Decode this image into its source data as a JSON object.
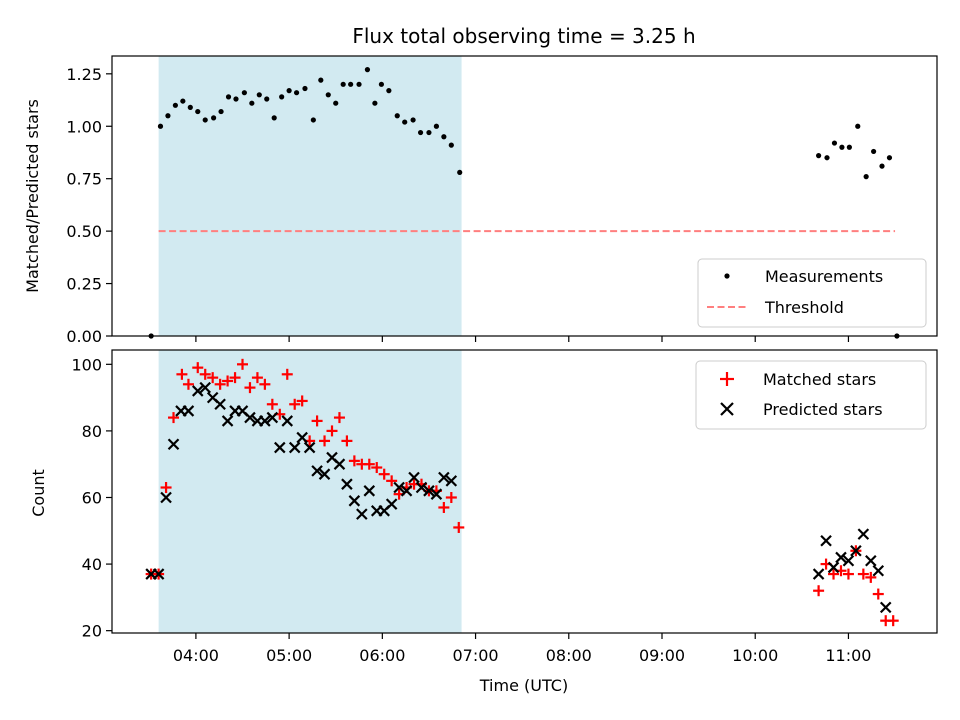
{
  "chart_data": {
    "type": "scatter",
    "title": "Flux total observing time = 3.25 h",
    "xlabel": "Time (UTC)",
    "x_unit": "hours UTC",
    "x_range": [
      3.1,
      11.95
    ],
    "x_ticks": [
      {
        "v": 4,
        "label": "04:00"
      },
      {
        "v": 5,
        "label": "05:00"
      },
      {
        "v": 6,
        "label": "06:00"
      },
      {
        "v": 7,
        "label": "07:00"
      },
      {
        "v": 8,
        "label": "08:00"
      },
      {
        "v": 9,
        "label": "09:00"
      },
      {
        "v": 10,
        "label": "10:00"
      },
      {
        "v": 11,
        "label": "11:00"
      }
    ],
    "shaded_span": {
      "x0": 3.6,
      "x1": 6.85,
      "color": "#add8e6"
    },
    "top": {
      "ylabel": "Matched/Predicted stars",
      "ylim": [
        0,
        1.335
      ],
      "y_ticks": [
        {
          "v": 0,
          "label": "0.00"
        },
        {
          "v": 0.25,
          "label": "0.25"
        },
        {
          "v": 0.5,
          "label": "0.50"
        },
        {
          "v": 0.75,
          "label": "0.75"
        },
        {
          "v": 1.0,
          "label": "1.00"
        },
        {
          "v": 1.25,
          "label": "1.25"
        }
      ],
      "legend": {
        "position": "lower right",
        "items": [
          "Measurements",
          "Threshold"
        ]
      },
      "threshold": {
        "name": "Threshold",
        "y": 0.5,
        "x0": 3.6,
        "x1": 11.5,
        "color": "#ff7f7f"
      },
      "measurements": {
        "name": "Measurements",
        "color": "#000000",
        "points": [
          [
            3.52,
            0.0
          ],
          [
            3.62,
            1.0
          ],
          [
            3.7,
            1.05
          ],
          [
            3.78,
            1.1
          ],
          [
            3.86,
            1.12
          ],
          [
            3.94,
            1.09
          ],
          [
            4.02,
            1.07
          ],
          [
            4.1,
            1.03
          ],
          [
            4.19,
            1.04
          ],
          [
            4.27,
            1.07
          ],
          [
            4.35,
            1.14
          ],
          [
            4.43,
            1.13
          ],
          [
            4.52,
            1.16
          ],
          [
            4.6,
            1.11
          ],
          [
            4.68,
            1.15
          ],
          [
            4.76,
            1.13
          ],
          [
            4.84,
            1.04
          ],
          [
            4.92,
            1.14
          ],
          [
            5.0,
            1.17
          ],
          [
            5.08,
            1.16
          ],
          [
            5.17,
            1.18
          ],
          [
            5.26,
            1.03
          ],
          [
            5.34,
            1.22
          ],
          [
            5.42,
            1.15
          ],
          [
            5.5,
            1.11
          ],
          [
            5.58,
            1.2
          ],
          [
            5.66,
            1.2
          ],
          [
            5.75,
            1.2
          ],
          [
            5.84,
            1.27
          ],
          [
            5.92,
            1.11
          ],
          [
            5.99,
            1.2
          ],
          [
            6.07,
            1.17
          ],
          [
            6.16,
            1.05
          ],
          [
            6.24,
            1.02
          ],
          [
            6.33,
            1.03
          ],
          [
            6.41,
            0.97
          ],
          [
            6.5,
            0.97
          ],
          [
            6.58,
            1.0
          ],
          [
            6.66,
            0.95
          ],
          [
            6.74,
            0.91
          ],
          [
            6.83,
            0.78
          ],
          [
            10.68,
            0.86
          ],
          [
            10.77,
            0.85
          ],
          [
            10.85,
            0.92
          ],
          [
            10.93,
            0.9
          ],
          [
            11.01,
            0.9
          ],
          [
            11.1,
            1.0
          ],
          [
            11.19,
            0.76
          ],
          [
            11.27,
            0.88
          ],
          [
            11.36,
            0.81
          ],
          [
            11.44,
            0.85
          ],
          [
            11.52,
            0.0
          ]
        ]
      }
    },
    "bottom": {
      "ylabel": "Count",
      "ylim": [
        19.3,
        104.3
      ],
      "y_ticks": [
        {
          "v": 20,
          "label": "20"
        },
        {
          "v": 40,
          "label": "40"
        },
        {
          "v": 60,
          "label": "60"
        },
        {
          "v": 80,
          "label": "80"
        },
        {
          "v": 100,
          "label": "100"
        }
      ],
      "legend": {
        "position": "upper right",
        "items": [
          "Matched stars",
          "Predicted stars"
        ]
      },
      "series": [
        {
          "name": "Matched stars",
          "marker": "plus",
          "color": "#ff0000",
          "points": [
            [
              3.52,
              37
            ],
            [
              3.6,
              37
            ],
            [
              3.68,
              63
            ],
            [
              3.76,
              84
            ],
            [
              3.85,
              97
            ],
            [
              3.92,
              94
            ],
            [
              4.02,
              99
            ],
            [
              4.1,
              97
            ],
            [
              4.18,
              96
            ],
            [
              4.26,
              94
            ],
            [
              4.34,
              95
            ],
            [
              4.42,
              96
            ],
            [
              4.5,
              100
            ],
            [
              4.58,
              93
            ],
            [
              4.66,
              96
            ],
            [
              4.74,
              94
            ],
            [
              4.82,
              88
            ],
            [
              4.9,
              85
            ],
            [
              4.98,
              97
            ],
            [
              5.06,
              88
            ],
            [
              5.14,
              89
            ],
            [
              5.22,
              77
            ],
            [
              5.3,
              83
            ],
            [
              5.38,
              77
            ],
            [
              5.46,
              80
            ],
            [
              5.54,
              84
            ],
            [
              5.62,
              77
            ],
            [
              5.7,
              71
            ],
            [
              5.78,
              70
            ],
            [
              5.86,
              70
            ],
            [
              5.94,
              69
            ],
            [
              6.02,
              67
            ],
            [
              6.1,
              65
            ],
            [
              6.18,
              61
            ],
            [
              6.26,
              63
            ],
            [
              6.34,
              64
            ],
            [
              6.42,
              64
            ],
            [
              6.5,
              62
            ],
            [
              6.58,
              62
            ],
            [
              6.66,
              57
            ],
            [
              6.74,
              60
            ],
            [
              6.82,
              51
            ],
            [
              10.68,
              32
            ],
            [
              10.76,
              40
            ],
            [
              10.84,
              37
            ],
            [
              10.92,
              38
            ],
            [
              11.0,
              37
            ],
            [
              11.08,
              44
            ],
            [
              11.16,
              37
            ],
            [
              11.24,
              36
            ],
            [
              11.32,
              31
            ],
            [
              11.4,
              23
            ],
            [
              11.48,
              23
            ]
          ]
        },
        {
          "name": "Predicted stars",
          "marker": "x",
          "color": "#000000",
          "points": [
            [
              3.52,
              37
            ],
            [
              3.6,
              37
            ],
            [
              3.68,
              60
            ],
            [
              3.76,
              76
            ],
            [
              3.84,
              86
            ],
            [
              3.92,
              86
            ],
            [
              4.02,
              92
            ],
            [
              4.1,
              93
            ],
            [
              4.18,
              90
            ],
            [
              4.26,
              88
            ],
            [
              4.34,
              83
            ],
            [
              4.42,
              86
            ],
            [
              4.5,
              86
            ],
            [
              4.58,
              84
            ],
            [
              4.66,
              83
            ],
            [
              4.74,
              83
            ],
            [
              4.82,
              84
            ],
            [
              4.9,
              75
            ],
            [
              4.98,
              83
            ],
            [
              5.06,
              75
            ],
            [
              5.14,
              78
            ],
            [
              5.22,
              75
            ],
            [
              5.3,
              68
            ],
            [
              5.38,
              67
            ],
            [
              5.46,
              72
            ],
            [
              5.54,
              70
            ],
            [
              5.62,
              64
            ],
            [
              5.7,
              59
            ],
            [
              5.78,
              55
            ],
            [
              5.86,
              62
            ],
            [
              5.94,
              56
            ],
            [
              6.02,
              56
            ],
            [
              6.1,
              58
            ],
            [
              6.18,
              63
            ],
            [
              6.26,
              62
            ],
            [
              6.34,
              66
            ],
            [
              6.42,
              63
            ],
            [
              6.5,
              62
            ],
            [
              6.58,
              61
            ],
            [
              6.66,
              66
            ],
            [
              6.74,
              65
            ],
            [
              10.68,
              37
            ],
            [
              10.76,
              47
            ],
            [
              10.84,
              39
            ],
            [
              10.92,
              42
            ],
            [
              11.0,
              41
            ],
            [
              11.08,
              44
            ],
            [
              11.16,
              49
            ],
            [
              11.24,
              41
            ],
            [
              11.32,
              38
            ],
            [
              11.4,
              27
            ]
          ]
        }
      ]
    }
  }
}
